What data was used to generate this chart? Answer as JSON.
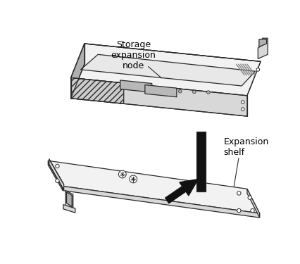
{
  "background_color": "#ffffff",
  "label_storage_node": "Storage\nexpansion\nnode",
  "label_expansion_shelf": "Expansion\nshelf",
  "figure_width": 4.27,
  "figure_height": 3.75,
  "line_color": "#2a2a2a",
  "fill_light": "#f2f2f2",
  "fill_mid": "#d8d8d8",
  "fill_dark": "#b0b0b0",
  "fill_black": "#111111",
  "fill_hatch": "#e0e0e0",
  "annotation_fontsize": 9.0
}
